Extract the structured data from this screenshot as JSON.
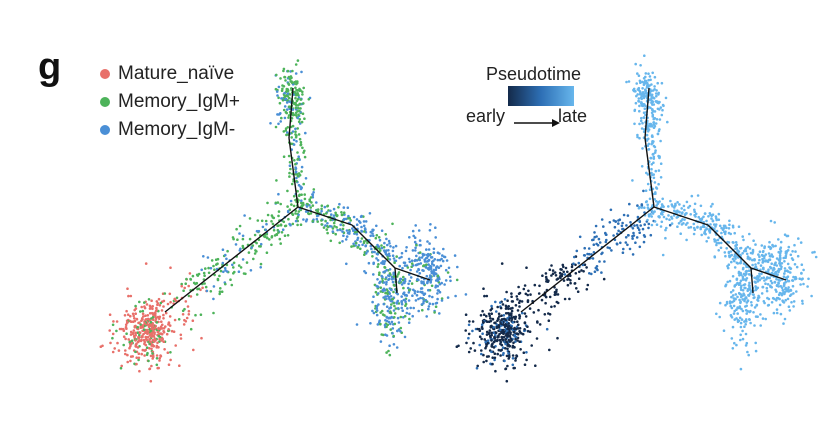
{
  "panel": {
    "letter": "g"
  },
  "legend": {
    "items": [
      {
        "label": "Mature_naïve",
        "color": "#e8706a"
      },
      {
        "label": "Memory_IgM+",
        "color": "#4db35a"
      },
      {
        "label": "Memory_IgM-",
        "color": "#4a8fd6"
      }
    ]
  },
  "pseudotime_legend": {
    "title": "Pseudotime",
    "early_label": "early",
    "late_label": "late",
    "gradient": [
      "#142a4a",
      "#2d6fb5",
      "#67b6ec"
    ]
  },
  "chart_data": [
    {
      "type": "scatter",
      "description_key": "trajectory-by-cell-type",
      "series": [
        {
          "name": "Mature_naïve",
          "color": "#e8706a"
        },
        {
          "name": "Memory_IgM+",
          "color": "#4db35a"
        },
        {
          "name": "Memory_IgM-",
          "color": "#4a8fd6"
        }
      ]
    },
    {
      "type": "scatter",
      "description_key": "trajectory-by-pseudotime",
      "color_scale": [
        "#142a4a",
        "#2d6fb5",
        "#67b6ec"
      ]
    }
  ]
}
